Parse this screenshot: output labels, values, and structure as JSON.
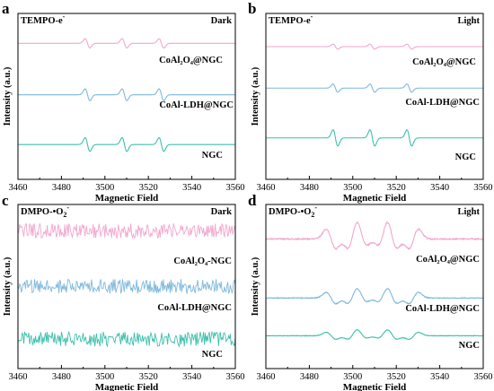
{
  "colors": {
    "pink": "#f2a6cf",
    "blue": "#7fb8dc",
    "teal": "#3ebfad",
    "axis": "#000000"
  },
  "chart_data": [
    {
      "type": "line",
      "panel": "a",
      "probe": "TEMPO-e",
      "probe_sup": "-",
      "condition": "Dark",
      "xlabel": "Magnetic Field",
      "ylabel": "Intensity (a.u.)",
      "xlim": [
        3460,
        3560
      ],
      "xticks": [
        3460,
        3480,
        3500,
        3520,
        3540,
        3560
      ],
      "pattern": "triplet",
      "peaks_x": [
        3492,
        3509,
        3526
      ],
      "series": [
        {
          "name": "CoAl₂O₄@NGC",
          "color": "pink",
          "offset": 0.82,
          "amplitude": 0.075
        },
        {
          "name": "CoAl-LDH@NGC",
          "color": "blue",
          "offset": 0.51,
          "amplitude": 0.095
        },
        {
          "name": "NGC",
          "color": "teal",
          "offset": 0.21,
          "amplitude": 0.11
        }
      ]
    },
    {
      "type": "line",
      "panel": "b",
      "probe": "TEMPO-e",
      "probe_sup": "-",
      "condition": "Light",
      "xlabel": "Magnetic Field",
      "ylabel": "Intensity (a.u.)",
      "xlim": [
        3460,
        3560
      ],
      "xticks": [
        3460,
        3480,
        3500,
        3520,
        3540,
        3560
      ],
      "pattern": "triplet",
      "peaks_x": [
        3492,
        3509,
        3526
      ],
      "series": [
        {
          "name": "CoAl₂O₄@NGC",
          "color": "pink",
          "offset": 0.8,
          "amplitude": 0.04
        },
        {
          "name": "CoAl-LDH@NGC",
          "color": "blue",
          "offset": 0.55,
          "amplitude": 0.065
        },
        {
          "name": "NGC",
          "color": "teal",
          "offset": 0.25,
          "amplitude": 0.13
        }
      ]
    },
    {
      "type": "line",
      "panel": "c",
      "probe": "DMPO-•O",
      "probe_sub": "2",
      "probe_sup": "-",
      "condition": "Dark",
      "xlabel": "Magnetic Field",
      "ylabel": "Intensity (a.u.)",
      "xlim": [
        3460,
        3560
      ],
      "xticks": [
        3460,
        3480,
        3500,
        3520,
        3540,
        3560
      ],
      "pattern": "noise",
      "series": [
        {
          "name": "CoAl₂O₄-NGC",
          "color": "pink",
          "offset": 0.84,
          "amplitude": 0.045
        },
        {
          "name": "CoAl-LDH@NGC",
          "color": "blue",
          "offset": 0.5,
          "amplitude": 0.045
        },
        {
          "name": "NGC",
          "color": "teal",
          "offset": 0.18,
          "amplitude": 0.045
        }
      ]
    },
    {
      "type": "line",
      "panel": "d",
      "probe": "DMPO-•O",
      "probe_sub": "2",
      "probe_sup": "-",
      "condition": "Light",
      "xlabel": "Magnetic Field",
      "ylabel": "Intensity (a.u.)",
      "xlim": [
        3460,
        3560
      ],
      "xticks": [
        3460,
        3480,
        3500,
        3520,
        3540,
        3560
      ],
      "pattern": "superoxide",
      "peaks_x": [
        3490,
        3500,
        3504,
        3514,
        3518,
        3528
      ],
      "series": [
        {
          "name": "CoAl₂O₄@NGC",
          "color": "pink",
          "offset": 0.79,
          "amplitude": 0.14
        },
        {
          "name": "CoAl-LDH@NGC",
          "color": "blue",
          "offset": 0.43,
          "amplitude": 0.08
        },
        {
          "name": "NGC",
          "color": "teal",
          "offset": 0.2,
          "amplitude": 0.05
        }
      ]
    }
  ]
}
